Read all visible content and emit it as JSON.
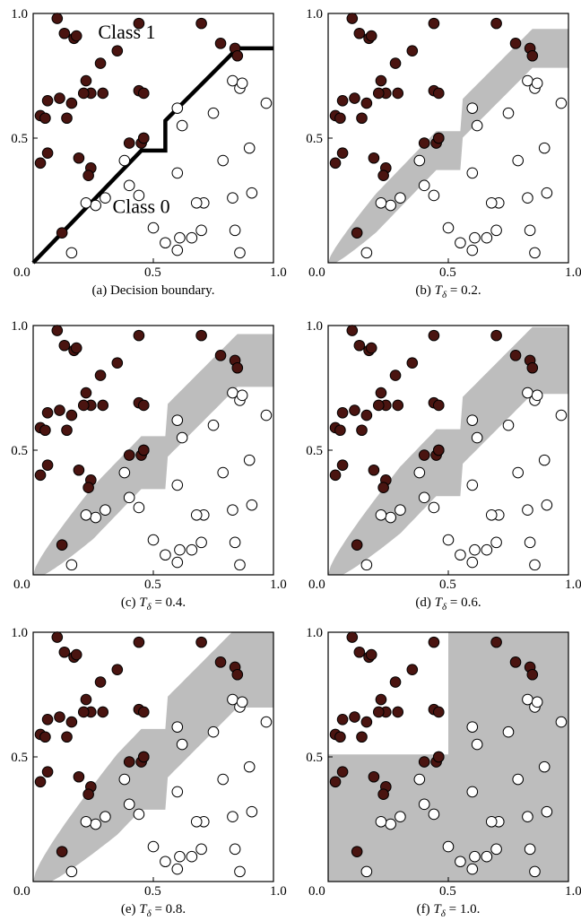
{
  "chart_data": [
    {
      "type": "scatter",
      "caption": "(a) Decision boundary.",
      "annotations": [
        "Class 1",
        "Class 0"
      ],
      "region": "boundary"
    },
    {
      "type": "scatter",
      "caption_prefix": "(b) ",
      "caption_symbol": "T",
      "caption_sub": "δ",
      "caption_value": " = 0.2.",
      "region": "band",
      "t": 0.2
    },
    {
      "type": "scatter",
      "caption_prefix": "(c) ",
      "caption_symbol": "T",
      "caption_sub": "δ",
      "caption_value": " = 0.4.",
      "region": "band",
      "t": 0.4
    },
    {
      "type": "scatter",
      "caption_prefix": "(d) ",
      "caption_symbol": "T",
      "caption_sub": "δ",
      "caption_value": " = 0.6.",
      "region": "band",
      "t": 0.6
    },
    {
      "type": "scatter",
      "caption_prefix": "(e) ",
      "caption_symbol": "T",
      "caption_sub": "δ",
      "caption_value": " = 0.8.",
      "region": "band",
      "t": 0.8
    },
    {
      "type": "scatter",
      "caption_prefix": "(f) ",
      "caption_symbol": "T",
      "caption_sub": "δ",
      "caption_value": " = 1.0.",
      "region": "step",
      "t": 1.0
    }
  ],
  "axes": {
    "xlim": [
      0,
      1
    ],
    "ylim": [
      0,
      1
    ],
    "xticks": [
      "0.0",
      "0.5",
      "1.0"
    ],
    "yticks": [
      "0.5",
      "1.0"
    ]
  },
  "colors": {
    "class1": "#4a1410",
    "class0": "#ffffff",
    "band": "#bdbdbd",
    "boundary": "#000000"
  },
  "boundary": [
    [
      0,
      0
    ],
    [
      0.45,
      0.45
    ],
    [
      0.55,
      0.45
    ],
    [
      0.55,
      0.57
    ],
    [
      0.85,
      0.86
    ],
    [
      1.0,
      0.86
    ]
  ],
  "class1_points": [
    [
      0.1,
      0.98
    ],
    [
      0.13,
      0.92
    ],
    [
      0.17,
      0.9
    ],
    [
      0.18,
      0.91
    ],
    [
      0.35,
      0.85
    ],
    [
      0.44,
      0.96
    ],
    [
      0.7,
      0.96
    ],
    [
      0.78,
      0.88
    ],
    [
      0.84,
      0.86
    ],
    [
      0.85,
      0.83
    ],
    [
      0.28,
      0.8
    ],
    [
      0.22,
      0.73
    ],
    [
      0.03,
      0.59
    ],
    [
      0.05,
      0.58
    ],
    [
      0.06,
      0.65
    ],
    [
      0.11,
      0.66
    ],
    [
      0.16,
      0.64
    ],
    [
      0.14,
      0.58
    ],
    [
      0.24,
      0.68
    ],
    [
      0.21,
      0.68
    ],
    [
      0.29,
      0.68
    ],
    [
      0.44,
      0.69
    ],
    [
      0.46,
      0.68
    ],
    [
      0.03,
      0.4
    ],
    [
      0.06,
      0.44
    ],
    [
      0.19,
      0.42
    ],
    [
      0.24,
      0.38
    ],
    [
      0.23,
      0.35
    ],
    [
      0.4,
      0.48
    ],
    [
      0.45,
      0.48
    ],
    [
      0.46,
      0.5
    ],
    [
      0.46,
      0.5
    ],
    [
      0.12,
      0.12
    ]
  ],
  "class0_points": [
    [
      0.83,
      0.73
    ],
    [
      0.86,
      0.7
    ],
    [
      0.87,
      0.72
    ],
    [
      0.97,
      0.64
    ],
    [
      0.75,
      0.6
    ],
    [
      0.6,
      0.62
    ],
    [
      0.62,
      0.55
    ],
    [
      0.79,
      0.41
    ],
    [
      0.9,
      0.46
    ],
    [
      0.6,
      0.36
    ],
    [
      0.38,
      0.41
    ],
    [
      0.4,
      0.31
    ],
    [
      0.44,
      0.27
    ],
    [
      0.3,
      0.26
    ],
    [
      0.26,
      0.23
    ],
    [
      0.22,
      0.24
    ],
    [
      0.71,
      0.24
    ],
    [
      0.68,
      0.24
    ],
    [
      0.83,
      0.26
    ],
    [
      0.91,
      0.28
    ],
    [
      0.5,
      0.14
    ],
    [
      0.55,
      0.08
    ],
    [
      0.6,
      0.05
    ],
    [
      0.61,
      0.1
    ],
    [
      0.66,
      0.1
    ],
    [
      0.7,
      0.13
    ],
    [
      0.84,
      0.13
    ],
    [
      0.86,
      0.04
    ],
    [
      0.16,
      0.04
    ]
  ]
}
